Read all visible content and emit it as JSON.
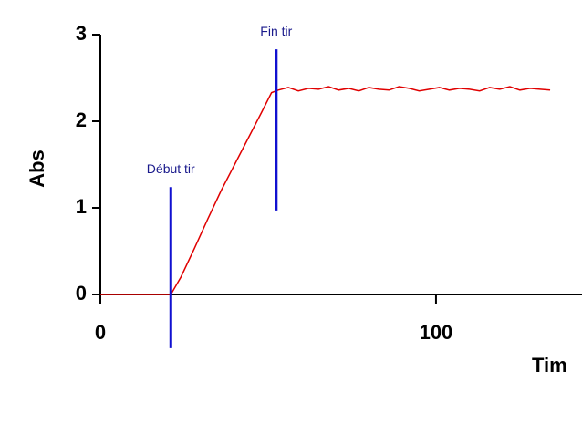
{
  "chart_data": {
    "type": "line",
    "ylabel": "Abs",
    "xlabel": "Tim",
    "x": [
      0,
      21,
      24,
      28,
      32,
      36,
      40,
      44,
      48,
      51,
      53,
      56,
      59,
      62,
      65,
      68,
      71,
      74,
      77,
      80,
      83,
      86,
      89,
      92,
      95,
      98,
      101,
      104,
      107,
      110,
      113,
      116,
      119,
      122,
      125,
      128,
      131,
      134
    ],
    "series": [
      {
        "name": "Abs",
        "color": "#e00000",
        "values": [
          0,
          0,
          0.2,
          0.53,
          0.87,
          1.2,
          1.5,
          1.8,
          2.1,
          2.33,
          2.36,
          2.39,
          2.35,
          2.38,
          2.37,
          2.4,
          2.36,
          2.38,
          2.35,
          2.39,
          2.37,
          2.36,
          2.4,
          2.38,
          2.35,
          2.37,
          2.39,
          2.36,
          2.38,
          2.37,
          2.35,
          2.39,
          2.37,
          2.4,
          2.36,
          2.38,
          2.37,
          2.36
        ]
      }
    ],
    "markers": [
      {
        "label": "Début tir",
        "x": 21,
        "ymin": -0.62,
        "ymax": 1.24,
        "color": "#1010d0"
      },
      {
        "label": "Fin tir",
        "x": 52.4,
        "ymin": 0.97,
        "ymax": 2.83,
        "color": "#1010d0"
      }
    ],
    "xlim": [
      0,
      143.5
    ],
    "ylim": [
      0,
      3
    ],
    "xticks": [
      0,
      100
    ],
    "yticks": [
      0,
      1,
      2,
      3
    ]
  }
}
